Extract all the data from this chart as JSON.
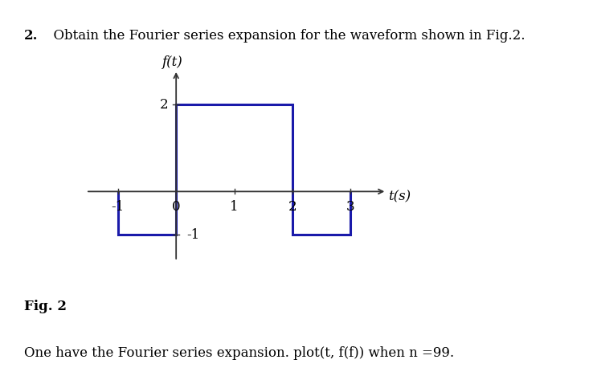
{
  "title_num": "2.",
  "title_text": "  Obtain the Fourier series expansion for the waveform shown in Fig.2.",
  "ylabel": "f(t)",
  "xlabel": "t(s)",
  "fig_label": "Fig. 2",
  "caption": "One have the Fourier series expansion. plot(t, f(f)) when n =99.",
  "waveform_color": "#1a1aaa",
  "waveform_linewidth": 2.2,
  "axis_color": "#333333",
  "background_color": "#ffffff",
  "segments": [
    {
      "x": [
        -1.0,
        -1.0,
        0.0,
        0.0
      ],
      "y": [
        0.0,
        -1.0,
        -1.0,
        0.0
      ]
    },
    {
      "x": [
        0.0,
        0.0,
        2.0,
        2.0
      ],
      "y": [
        0.0,
        2.0,
        2.0,
        0.0
      ]
    },
    {
      "x": [
        2.0,
        2.0,
        3.0,
        3.0
      ],
      "y": [
        0.0,
        -1.0,
        -1.0,
        0.0
      ]
    }
  ],
  "xtick_vals": [
    -1,
    0,
    1,
    2,
    3
  ],
  "xtick_labels": [
    "-1",
    "0",
    "1",
    "2",
    "3"
  ],
  "ytick_vals": [
    2,
    -1
  ],
  "ytick_labels": [
    "2",
    "-1"
  ],
  "xlim": [
    -1.6,
    3.7
  ],
  "ylim": [
    -1.65,
    2.85
  ]
}
